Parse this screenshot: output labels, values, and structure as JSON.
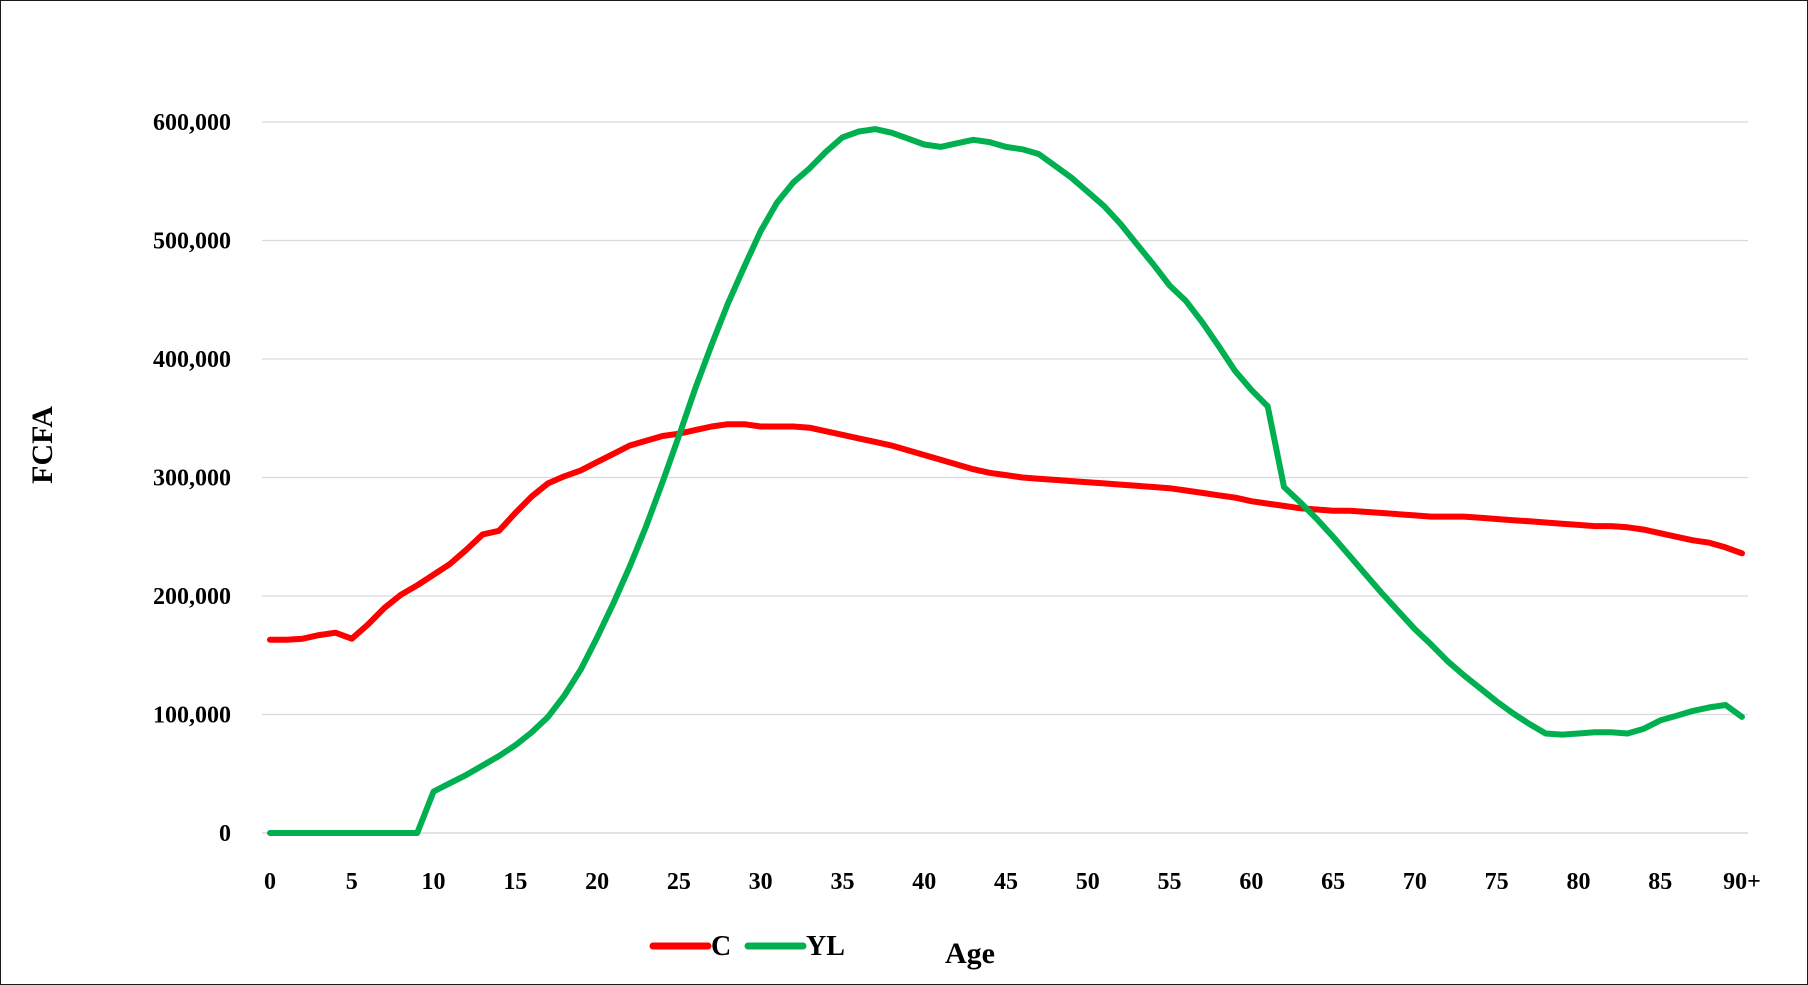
{
  "chart_data": {
    "type": "line",
    "title": "",
    "xlabel": "Age",
    "ylabel": "FCFA",
    "xlim": [
      0,
      90
    ],
    "ylim": [
      0,
      600000
    ],
    "y_ticks": [
      "0",
      "100,000",
      "200,000",
      "300,000",
      "400,000",
      "500,000",
      "600,000"
    ],
    "y_tick_values": [
      0,
      100000,
      200000,
      300000,
      400000,
      500000,
      600000
    ],
    "x_ticks": [
      "0",
      "5",
      "10",
      "15",
      "20",
      "25",
      "30",
      "35",
      "40",
      "45",
      "50",
      "55",
      "60",
      "65",
      "70",
      "75",
      "80",
      "85",
      "90+"
    ],
    "x_tick_values": [
      0,
      5,
      10,
      15,
      20,
      25,
      30,
      35,
      40,
      45,
      50,
      55,
      60,
      65,
      70,
      75,
      80,
      85,
      90
    ],
    "grid": "horizontal",
    "legend_position": "bottom",
    "x": [
      0,
      1,
      2,
      3,
      4,
      5,
      6,
      7,
      8,
      9,
      10,
      11,
      12,
      13,
      14,
      15,
      16,
      17,
      18,
      19,
      20,
      21,
      22,
      23,
      24,
      25,
      26,
      27,
      28,
      29,
      30,
      31,
      32,
      33,
      34,
      35,
      36,
      37,
      38,
      39,
      40,
      41,
      42,
      43,
      44,
      45,
      46,
      47,
      48,
      49,
      50,
      51,
      52,
      53,
      54,
      55,
      56,
      57,
      58,
      59,
      60,
      61,
      62,
      63,
      64,
      65,
      66,
      67,
      68,
      69,
      70,
      71,
      72,
      73,
      74,
      75,
      76,
      77,
      78,
      79,
      80,
      81,
      82,
      83,
      84,
      85,
      86,
      87,
      88,
      89,
      90
    ],
    "series": [
      {
        "name": "C",
        "color": "#ff0000",
        "values": [
          163000,
          163000,
          164000,
          167000,
          169000,
          164000,
          176000,
          190000,
          201000,
          209000,
          218000,
          227000,
          239000,
          252000,
          255000,
          270000,
          284000,
          295000,
          301000,
          306000,
          313000,
          320000,
          327000,
          331000,
          335000,
          337000,
          340000,
          343000,
          345000,
          345000,
          343000,
          343000,
          343000,
          342000,
          339000,
          336000,
          333000,
          330000,
          327000,
          323000,
          319000,
          315000,
          311000,
          307000,
          304000,
          302000,
          300000,
          299000,
          298000,
          297000,
          296000,
          295000,
          294000,
          293000,
          292000,
          291000,
          289000,
          287000,
          285000,
          283000,
          280000,
          278000,
          276000,
          274000,
          273000,
          272000,
          272000,
          271000,
          270000,
          269000,
          268000,
          267000,
          267000,
          267000,
          266000,
          265000,
          264000,
          263000,
          262000,
          261000,
          260000,
          259000,
          259000,
          258000,
          256000,
          253000,
          250000,
          247000,
          245000,
          241000,
          236000
        ]
      },
      {
        "name": "YL",
        "color": "#00b050",
        "values": [
          0,
          0,
          0,
          0,
          0,
          0,
          0,
          0,
          0,
          0,
          35000,
          42000,
          49000,
          57000,
          65000,
          74000,
          85000,
          98000,
          116000,
          138000,
          165000,
          194000,
          225000,
          259000,
          296000,
          335000,
          375000,
          412000,
          447000,
          478000,
          508000,
          532000,
          549000,
          561000,
          575000,
          587000,
          592000,
          594000,
          591000,
          586000,
          581000,
          579000,
          582000,
          585000,
          583000,
          579000,
          577000,
          573000,
          563000,
          553000,
          541000,
          529000,
          514000,
          497000,
          480000,
          462000,
          449000,
          431000,
          411000,
          390000,
          374000,
          360000,
          292000,
          279000,
          265000,
          250000,
          234000,
          218000,
          202000,
          187000,
          172000,
          159000,
          145000,
          133000,
          122000,
          111000,
          101000,
          92000,
          84000,
          83000,
          84000,
          85000,
          85000,
          84000,
          88000,
          95000,
          99000,
          103000,
          106000,
          108000,
          98000
        ]
      }
    ]
  }
}
